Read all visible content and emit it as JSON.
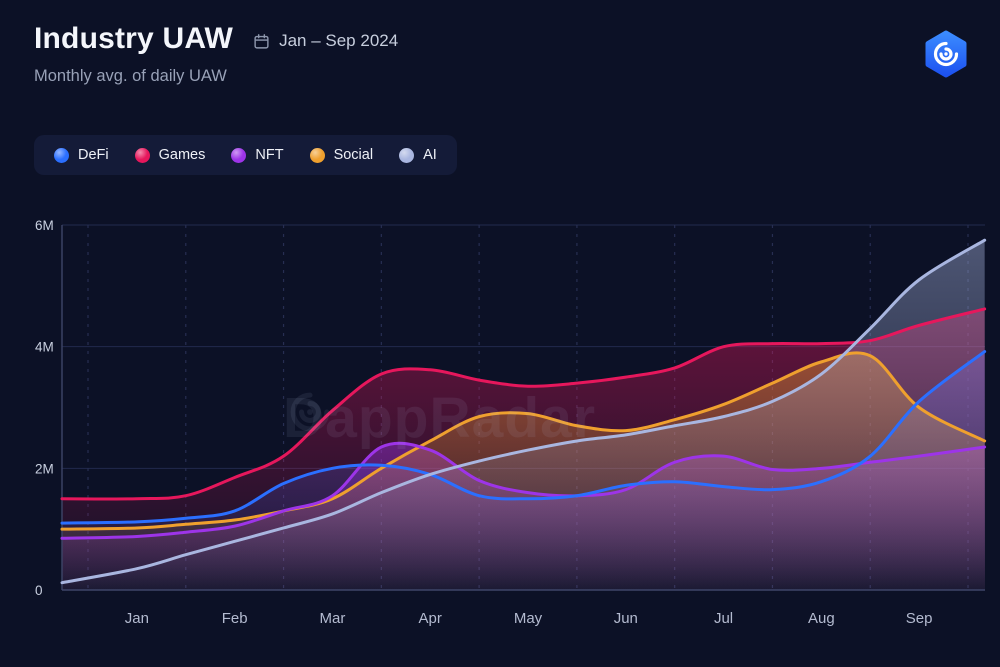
{
  "header": {
    "title": "Industry UAW",
    "period": "Jan – Sep 2024",
    "subtitle": "Monthly avg. of daily UAW"
  },
  "watermark": "DappRadar",
  "colors": {
    "background": "#0c1126",
    "legend_pill": "#141b38",
    "axis_text": "#c9d0e0",
    "month_text": "#b4bbd0",
    "logo_blue": "#2f7bff"
  },
  "chart_data": {
    "type": "area",
    "title": "Industry UAW",
    "subtitle": "Monthly avg. of daily UAW",
    "period": "Jan – Sep 2024",
    "unit": "millions of unique active wallets",
    "ylim": [
      0,
      6
    ],
    "yticks": [
      {
        "value": 0,
        "label": "0"
      },
      {
        "value": 2,
        "label": "2M"
      },
      {
        "value": 4,
        "label": "4M"
      },
      {
        "value": 6,
        "label": "6M"
      }
    ],
    "categories": [
      "Jan",
      "Feb",
      "Mar",
      "Apr",
      "May",
      "Jun",
      "Jul",
      "Aug",
      "Sep"
    ],
    "grid": {
      "horizontal": "solid",
      "vertical": "dashed"
    },
    "legend_position": "top-left",
    "x_samples": [
      -0.77,
      0,
      0.5,
      1,
      1.5,
      2,
      2.5,
      3,
      3.5,
      4,
      4.5,
      5,
      5.5,
      6,
      6.5,
      7,
      7.5,
      8,
      8.67
    ],
    "series": [
      {
        "name": "DeFi",
        "color": "#2b6fff",
        "values": [
          1.1,
          1.12,
          1.18,
          1.3,
          1.75,
          2.0,
          2.05,
          1.9,
          1.55,
          1.5,
          1.55,
          1.72,
          1.78,
          1.7,
          1.65,
          1.78,
          2.2,
          3.1,
          3.92
        ]
      },
      {
        "name": "Games",
        "color": "#e6175c",
        "values": [
          1.5,
          1.5,
          1.55,
          1.85,
          2.2,
          2.95,
          3.55,
          3.62,
          3.45,
          3.35,
          3.4,
          3.5,
          3.65,
          4.0,
          4.05,
          4.05,
          4.1,
          4.35,
          4.62
        ]
      },
      {
        "name": "NFT",
        "color": "#9d34e8",
        "values": [
          0.85,
          0.88,
          0.95,
          1.05,
          1.3,
          1.55,
          2.35,
          2.3,
          1.8,
          1.6,
          1.55,
          1.65,
          2.1,
          2.2,
          1.98,
          2.0,
          2.1,
          2.2,
          2.35
        ]
      },
      {
        "name": "Social",
        "color": "#efa02e",
        "values": [
          1.0,
          1.02,
          1.08,
          1.15,
          1.3,
          1.5,
          2.0,
          2.45,
          2.85,
          2.9,
          2.7,
          2.62,
          2.8,
          3.05,
          3.4,
          3.75,
          3.85,
          3.0,
          2.45
        ]
      },
      {
        "name": "AI",
        "color": "#a9b6e0",
        "values": [
          0.12,
          0.35,
          0.58,
          0.8,
          1.02,
          1.25,
          1.6,
          1.9,
          2.12,
          2.3,
          2.45,
          2.55,
          2.7,
          2.85,
          3.1,
          3.55,
          4.3,
          5.1,
          5.75
        ]
      }
    ]
  }
}
